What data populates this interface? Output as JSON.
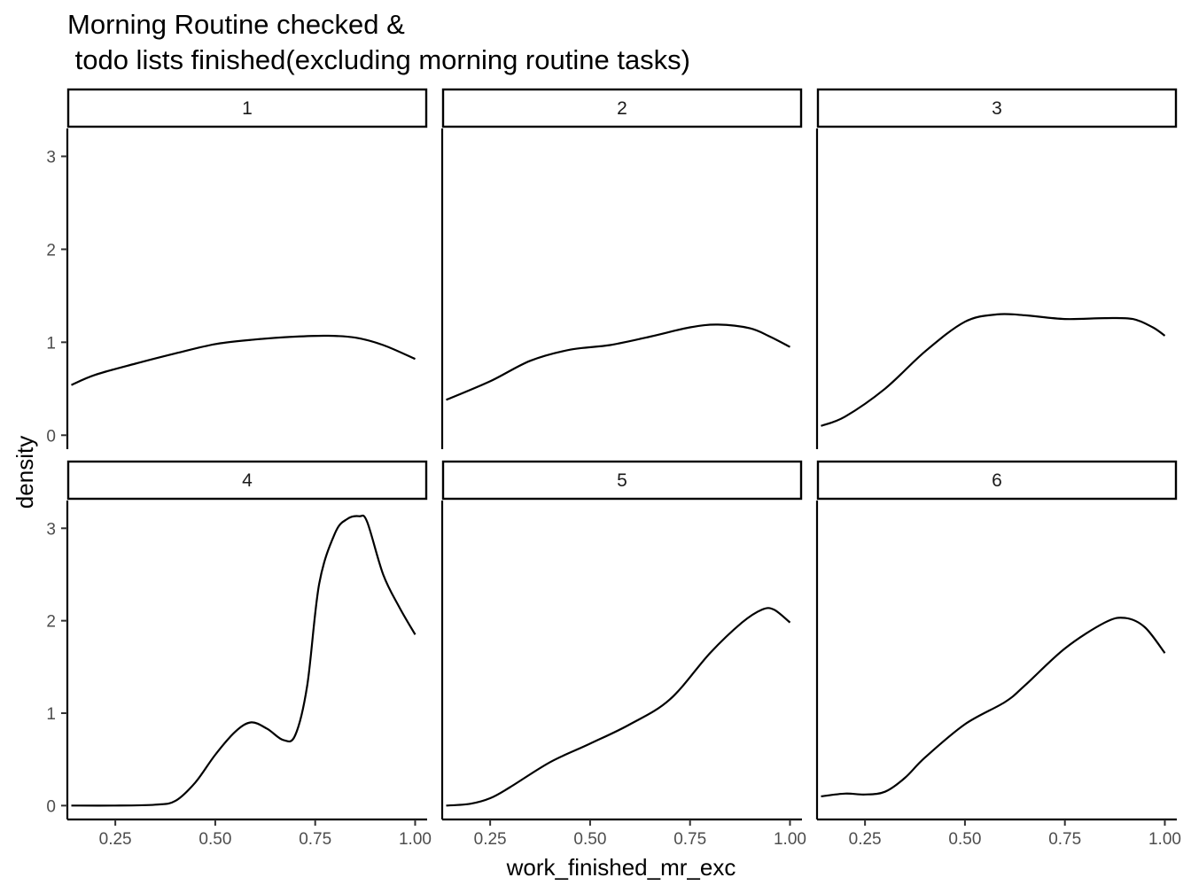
{
  "chart_data": {
    "type": "line",
    "title_lines": [
      "Morning Routine checked &",
      " todo lists finished(excluding morning routine tasks)"
    ],
    "xlabel": "work_finished_mr_exc",
    "ylabel": "density",
    "xlim": [
      0.13,
      1.03
    ],
    "ylim": [
      -0.15,
      3.3
    ],
    "xticks": [
      0.25,
      0.5,
      0.75,
      1.0
    ],
    "xtick_labels": [
      "0.25",
      "0.50",
      "0.75",
      "1.00"
    ],
    "yticks": [
      0,
      1,
      2,
      3
    ],
    "ytick_labels": [
      "0",
      "1",
      "2",
      "3"
    ],
    "grid": false,
    "line_color": "#000000",
    "facets": [
      {
        "label": "1",
        "x": [
          0.14,
          0.2,
          0.3,
          0.4,
          0.5,
          0.6,
          0.7,
          0.78,
          0.85,
          0.92,
          1.0
        ],
        "y": [
          0.54,
          0.65,
          0.77,
          0.88,
          0.98,
          1.03,
          1.06,
          1.07,
          1.05,
          0.97,
          0.82
        ]
      },
      {
        "label": "2",
        "x": [
          0.14,
          0.25,
          0.35,
          0.45,
          0.55,
          0.65,
          0.75,
          0.82,
          0.9,
          0.95,
          1.0
        ],
        "y": [
          0.38,
          0.58,
          0.8,
          0.92,
          0.97,
          1.06,
          1.16,
          1.19,
          1.15,
          1.06,
          0.95
        ]
      },
      {
        "label": "3",
        "x": [
          0.14,
          0.2,
          0.3,
          0.4,
          0.5,
          0.58,
          0.65,
          0.75,
          0.85,
          0.92,
          0.97,
          1.0
        ],
        "y": [
          0.1,
          0.2,
          0.5,
          0.9,
          1.22,
          1.3,
          1.29,
          1.25,
          1.26,
          1.25,
          1.16,
          1.07
        ]
      },
      {
        "label": "4",
        "x": [
          0.14,
          0.25,
          0.35,
          0.4,
          0.45,
          0.5,
          0.55,
          0.59,
          0.63,
          0.67,
          0.7,
          0.73,
          0.76,
          0.8,
          0.83,
          0.86,
          0.88,
          0.92,
          0.96,
          1.0
        ],
        "y": [
          0.0,
          0.0,
          0.01,
          0.05,
          0.25,
          0.55,
          0.8,
          0.9,
          0.83,
          0.71,
          0.76,
          1.3,
          2.4,
          2.95,
          3.1,
          3.13,
          3.07,
          2.5,
          2.15,
          1.85
        ]
      },
      {
        "label": "5",
        "x": [
          0.14,
          0.2,
          0.25,
          0.3,
          0.4,
          0.5,
          0.6,
          0.7,
          0.8,
          0.88,
          0.93,
          0.96,
          1.0
        ],
        "y": [
          0.0,
          0.02,
          0.08,
          0.2,
          0.47,
          0.67,
          0.88,
          1.15,
          1.65,
          1.98,
          2.12,
          2.12,
          1.98
        ]
      },
      {
        "label": "6",
        "x": [
          0.14,
          0.2,
          0.25,
          0.3,
          0.35,
          0.4,
          0.5,
          0.6,
          0.65,
          0.75,
          0.85,
          0.9,
          0.95,
          1.0
        ],
        "y": [
          0.1,
          0.13,
          0.12,
          0.15,
          0.3,
          0.52,
          0.88,
          1.12,
          1.3,
          1.7,
          1.98,
          2.03,
          1.93,
          1.65
        ]
      }
    ]
  }
}
